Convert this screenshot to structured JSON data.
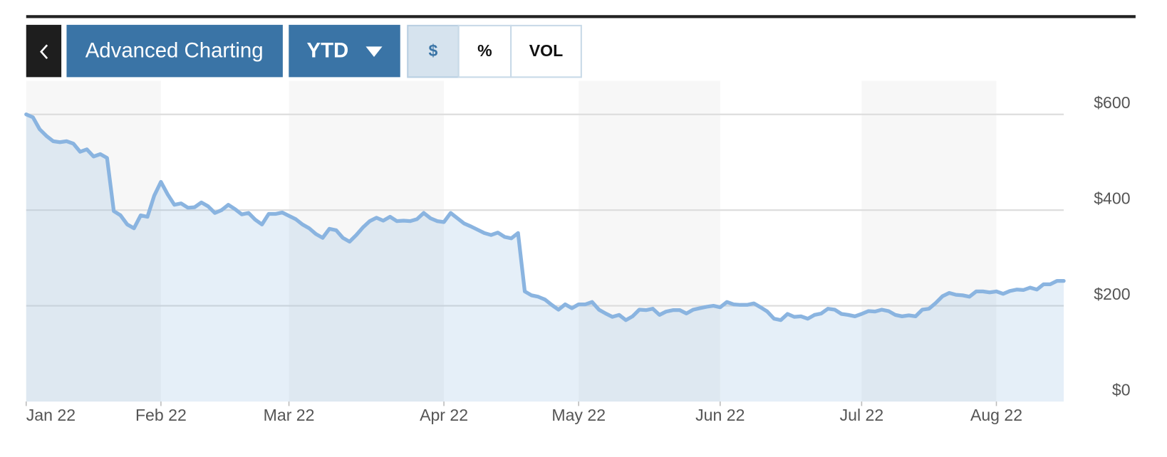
{
  "toolbar": {
    "button": "Advanced Charting",
    "range": "YTD",
    "modes": [
      "$",
      "%",
      "VOL"
    ]
  },
  "chart_data": {
    "type": "area",
    "x": [
      0,
      1,
      2,
      3,
      4,
      5,
      6,
      7,
      8,
      9,
      10,
      11,
      12,
      13,
      14,
      15,
      16,
      17,
      18,
      19,
      20,
      21,
      22,
      23,
      24,
      25,
      26,
      27,
      28,
      29,
      30,
      31,
      32,
      33,
      34,
      35,
      36,
      37,
      38,
      39,
      40,
      41,
      42,
      43,
      44,
      45,
      46,
      47,
      48,
      49,
      50,
      51,
      52,
      53,
      54,
      55,
      56,
      57,
      58,
      59,
      60,
      61,
      62,
      63,
      64,
      65,
      66,
      67,
      68,
      69,
      70,
      71,
      72,
      73,
      74,
      75,
      76,
      77,
      78,
      79,
      80,
      81,
      82,
      83,
      84,
      85,
      86,
      87,
      88,
      89,
      90,
      91,
      92,
      93,
      94,
      95,
      96,
      97,
      98,
      99,
      100,
      101,
      102,
      103,
      104,
      105,
      106,
      107,
      108,
      109,
      110,
      111,
      112,
      113,
      114,
      115,
      116,
      117,
      118,
      119,
      120,
      121,
      122,
      123,
      124,
      125,
      126,
      127,
      128,
      129,
      130,
      131,
      132,
      133,
      134,
      135,
      136,
      137,
      138,
      139,
      140,
      141,
      142,
      143,
      144,
      145,
      146,
      147,
      148,
      149,
      150,
      151,
      152,
      153,
      154
    ],
    "series": [
      {
        "color": "#8ab4e0",
        "values": [
          600,
          594,
          569,
          555,
          544,
          542,
          544,
          539,
          522,
          527,
          512,
          517,
          509,
          398,
          389,
          370,
          362,
          389,
          386,
          430,
          459,
          433,
          411,
          414,
          405,
          406,
          416,
          408,
          394,
          400,
          411,
          402,
          391,
          394,
          380,
          370,
          392,
          392,
          395,
          388,
          381,
          370,
          362,
          350,
          342,
          361,
          358,
          342,
          334,
          348,
          364,
          377,
          384,
          378,
          386,
          377,
          378,
          377,
          381,
          394,
          383,
          377,
          375,
          394,
          383,
          372,
          366,
          359,
          352,
          348,
          353,
          344,
          341,
          352,
          230,
          222,
          219,
          213,
          202,
          192,
          203,
          195,
          203,
          203,
          208,
          192,
          184,
          177,
          181,
          170,
          178,
          192,
          191,
          194,
          181,
          188,
          191,
          191,
          184,
          192,
          195,
          198,
          200,
          197,
          208,
          203,
          202,
          202,
          205,
          197,
          188,
          173,
          170,
          183,
          177,
          178,
          173,
          181,
          184,
          194,
          192,
          183,
          181,
          178,
          183,
          189,
          188,
          192,
          189,
          181,
          178,
          180,
          178,
          192,
          194,
          206,
          220,
          227,
          223,
          222,
          219,
          230,
          230,
          228,
          230,
          225,
          231,
          234,
          233,
          238,
          234,
          245,
          245,
          252,
          252
        ]
      }
    ],
    "xlim": [
      0,
      154
    ],
    "xticks": [
      {
        "value": 0,
        "label": "Jan 22"
      },
      {
        "value": 20,
        "label": "Feb 22"
      },
      {
        "value": 39,
        "label": "Mar 22"
      },
      {
        "value": 62,
        "label": "Apr 22"
      },
      {
        "value": 82,
        "label": "May 22"
      },
      {
        "value": 103,
        "label": "Jun 22"
      },
      {
        "value": 124,
        "label": "Jul 22"
      },
      {
        "value": 144,
        "label": "Aug 22"
      }
    ],
    "ylim": [
      0,
      670
    ],
    "yticks": [
      {
        "value": 0,
        "label": "$0"
      },
      {
        "value": 200,
        "label": "$200"
      },
      {
        "value": 400,
        "label": "$400"
      },
      {
        "value": 600,
        "label": "$600"
      }
    ],
    "grid": true
  }
}
